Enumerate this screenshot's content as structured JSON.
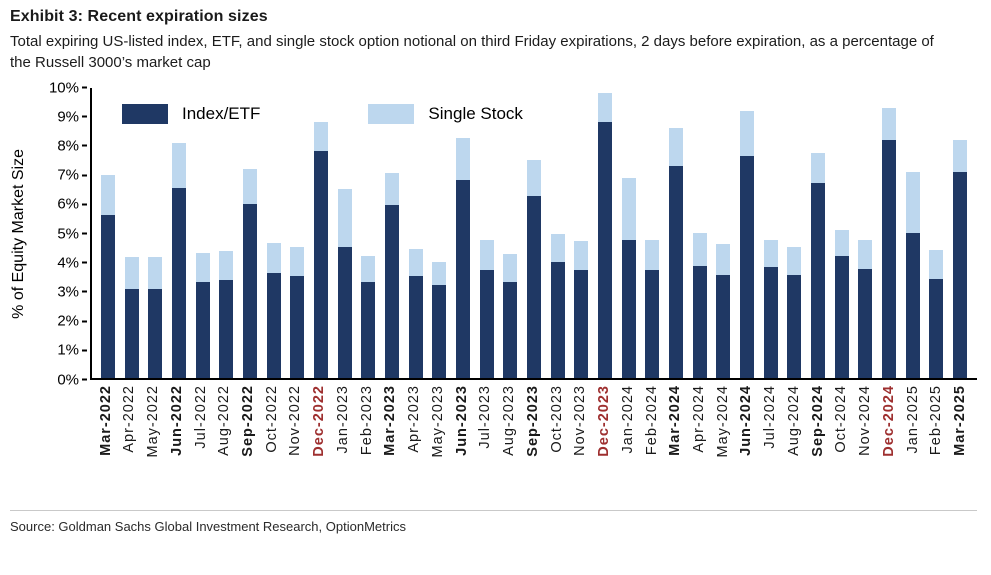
{
  "header": {
    "title": "Exhibit 3: Recent expiration sizes",
    "subtitle": "Total expiring US-listed index, ETF, and single stock option notional on third Friday expirations, 2 days before expiration, as a percentage of the Russell 3000’s market cap"
  },
  "footer": {
    "source": "Source: Goldman Sachs Global Investment Research, OptionMetrics"
  },
  "colors": {
    "index_etf": "#1f3864",
    "single_stock": "#bdd7ee",
    "december_label": "#9e2f2f",
    "axis": "#000000"
  },
  "chart_data": {
    "type": "bar",
    "stacked": true,
    "title": "Exhibit 3: Recent expiration sizes",
    "ylabel": "% of Equity Market Size",
    "ylim": [
      0,
      10
    ],
    "ytick_step": 1,
    "ytick_suffix": "%",
    "grid": false,
    "legend_position": "top-left",
    "categories": [
      "Mar-2022",
      "Apr-2022",
      "May-2022",
      "Jun-2022",
      "Jul-2022",
      "Aug-2022",
      "Sep-2022",
      "Oct-2022",
      "Nov-2022",
      "Dec-2022",
      "Jan-2023",
      "Feb-2023",
      "Mar-2023",
      "Apr-2023",
      "May-2023",
      "Jun-2023",
      "Jul-2023",
      "Aug-2023",
      "Sep-2023",
      "Oct-2023",
      "Nov-2023",
      "Dec-2023",
      "Jan-2024",
      "Feb-2024",
      "Mar-2024",
      "Apr-2024",
      "May-2024",
      "Jun-2024",
      "Jul-2024",
      "Aug-2024",
      "Sep-2024",
      "Oct-2024",
      "Nov-2024",
      "Dec-2024",
      "Jan-2025",
      "Feb-2025",
      "Mar-2025"
    ],
    "series": [
      {
        "name": "Index/ETF",
        "color": "#1f3864",
        "values": [
          5.6,
          3.05,
          3.05,
          6.55,
          3.3,
          3.35,
          6.0,
          3.6,
          3.5,
          7.8,
          4.5,
          3.3,
          5.95,
          3.5,
          3.2,
          6.8,
          3.7,
          3.3,
          6.25,
          4.0,
          3.7,
          8.8,
          4.75,
          3.7,
          7.3,
          3.85,
          3.55,
          7.65,
          3.8,
          3.55,
          6.7,
          4.2,
          3.75,
          8.2,
          5.0,
          3.4,
          7.1
        ]
      },
      {
        "name": "Single Stock",
        "color": "#bdd7ee",
        "values": [
          1.4,
          1.1,
          1.1,
          1.55,
          1.0,
          1.0,
          1.2,
          1.05,
          1.0,
          1.0,
          2.0,
          0.9,
          1.1,
          0.95,
          0.8,
          1.45,
          1.05,
          0.95,
          1.25,
          0.95,
          1.0,
          1.0,
          2.15,
          1.05,
          1.3,
          1.15,
          1.05,
          1.55,
          0.95,
          0.95,
          1.05,
          0.9,
          1.0,
          1.1,
          2.1,
          1.0,
          1.1
        ]
      }
    ],
    "totals": [
      7.0,
      4.15,
      4.15,
      8.1,
      4.3,
      4.35,
      7.2,
      4.65,
      4.5,
      8.8,
      6.5,
      4.2,
      7.05,
      4.45,
      4.0,
      8.25,
      4.75,
      4.25,
      7.5,
      4.95,
      4.7,
      9.8,
      6.9,
      4.75,
      8.6,
      5.0,
      4.6,
      9.2,
      4.75,
      4.5,
      7.75,
      5.1,
      4.75,
      9.3,
      7.1,
      4.4,
      8.2
    ]
  }
}
